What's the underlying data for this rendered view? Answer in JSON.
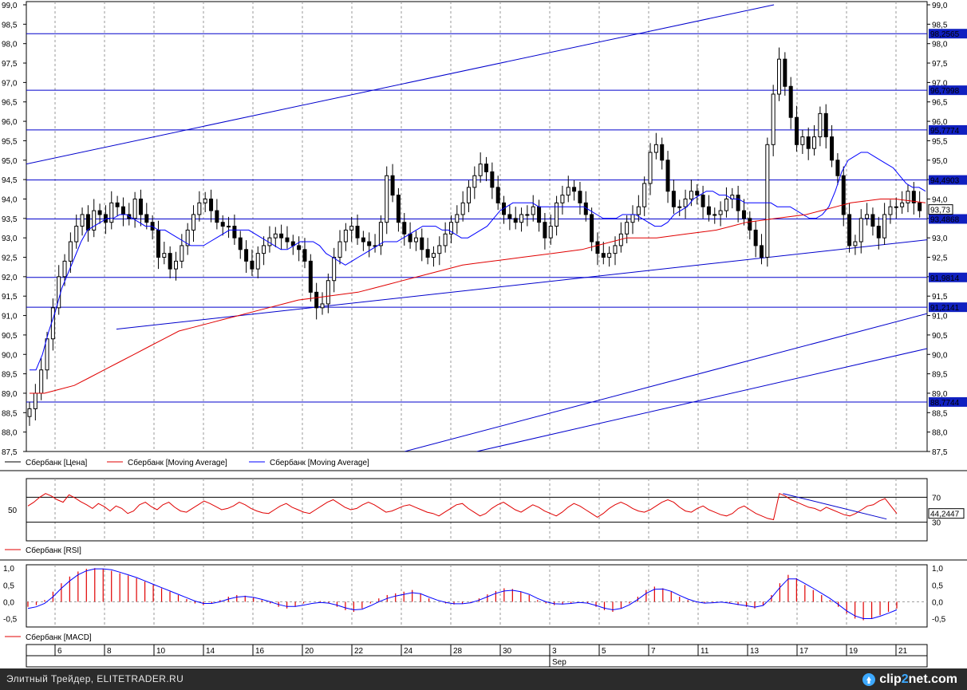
{
  "footer": {
    "site_text": "Элитный Трейдер, ELITETRADER.RU",
    "brand_pre": "clip",
    "brand_mid": "2",
    "brand_post": "net.com",
    "brand_icon": "clip-icon"
  },
  "colors": {
    "price": "#000000",
    "ma_fast": "#0000ff",
    "ma_slow": "#e00000",
    "level": "#0000cc",
    "rsi": "#e00000",
    "macd_hist": "#e00000",
    "macd_signal": "#0000ff"
  },
  "chart_data": [
    {
      "type": "candlestick",
      "panel": "price",
      "ylim": [
        87.5,
        99.0
      ],
      "y_ticks": [
        "87,5",
        "88,0",
        "88,5",
        "89,0",
        "89,5",
        "90,0",
        "90,5",
        "91,0",
        "91,5",
        "92,0",
        "92,5",
        "93,0",
        "93,5",
        "94,0",
        "94,5",
        "95,0",
        "95,5",
        "96,0",
        "96,5",
        "97,0",
        "97,5",
        "98,0",
        "98,5",
        "99,0"
      ],
      "legend": [
        "Сбербанк [Цена]",
        "Сбербанк [Moving Average]",
        "Сбербанк [Moving Average]"
      ],
      "horizontal_levels": [
        {
          "value": 98.2565,
          "label": "98,2565"
        },
        {
          "value": 96.7998,
          "label": "96,7998"
        },
        {
          "value": 95.7774,
          "label": "95,7774"
        },
        {
          "value": 94.4903,
          "label": "94,4903"
        },
        {
          "value": 93.4868,
          "label": "93,4868"
        },
        {
          "value": 91.9814,
          "label": "91,9814"
        },
        {
          "value": 91.2141,
          "label": "91,2141"
        },
        {
          "value": 88.7744,
          "label": "88,7744"
        }
      ],
      "last_price": {
        "value": 93.73,
        "label": "93,73"
      },
      "trend_lines": [
        {
          "from": [
            0.0,
            94.9
          ],
          "to": [
            0.83,
            99.0
          ]
        },
        {
          "from": [
            0.1,
            90.65
          ],
          "to": [
            1.0,
            92.95
          ]
        },
        {
          "from": [
            0.42,
            87.5
          ],
          "to": [
            1.0,
            91.05
          ]
        },
        {
          "from": [
            0.5,
            87.5
          ],
          "to": [
            1.0,
            90.15
          ]
        }
      ],
      "series": [
        {
          "name": "Сбербанк [Цена]",
          "close": [
            88.6,
            89.0,
            89.6,
            90.4,
            91.2,
            92.0,
            92.4,
            92.9,
            93.3,
            93.6,
            93.2,
            93.7,
            93.6,
            93.4,
            93.9,
            93.8,
            93.6,
            93.5,
            94.0,
            93.6,
            93.4,
            93.2,
            92.5,
            92.6,
            92.2,
            92.4,
            92.8,
            93.2,
            93.6,
            93.9,
            94.0,
            93.7,
            93.4,
            93.3,
            93.3,
            93.0,
            92.7,
            92.4,
            92.2,
            92.6,
            92.8,
            93.0,
            93.1,
            93.0,
            92.9,
            92.8,
            92.7,
            92.4,
            91.6,
            91.2,
            91.3,
            91.9,
            92.5,
            92.9,
            93.2,
            93.3,
            93.0,
            92.9,
            92.8,
            92.8,
            93.4,
            94.6,
            94.1,
            93.4,
            93.1,
            92.9,
            93.0,
            92.7,
            92.5,
            92.6,
            92.8,
            93.1,
            93.4,
            93.6,
            93.9,
            94.3,
            94.6,
            94.9,
            94.7,
            94.3,
            93.9,
            93.6,
            93.5,
            93.4,
            93.6,
            93.6,
            93.8,
            93.4,
            93.0,
            93.3,
            93.9,
            94.1,
            94.3,
            94.2,
            93.9,
            93.6,
            92.9,
            92.6,
            92.5,
            92.6,
            92.8,
            93.1,
            93.4,
            93.6,
            93.8,
            94.4,
            95.2,
            95.4,
            95.0,
            94.2,
            93.8,
            93.8,
            94.0,
            94.2,
            94.1,
            93.8,
            93.6,
            93.6,
            93.7,
            94.0,
            94.1,
            93.7,
            93.5,
            93.2,
            92.8,
            92.5,
            95.4,
            96.7,
            97.6,
            96.9,
            96.1,
            95.4,
            95.6,
            95.3,
            95.6,
            96.2,
            95.6,
            95.0,
            94.6,
            93.6,
            92.8,
            92.9,
            93.5,
            93.6,
            93.3,
            93.0,
            93.6,
            93.8,
            93.8,
            93.9,
            94.2,
            93.9,
            93.7
          ]
        },
        {
          "name": "Сбербанк [Moving Average] fast",
          "values": [
            89.6,
            89.6,
            90.0,
            90.6,
            91.1,
            91.7,
            92.1,
            92.5,
            92.9,
            93.2,
            93.3,
            93.4,
            93.5,
            93.5,
            93.6,
            93.6,
            93.5,
            93.4,
            93.3,
            93.3,
            93.2,
            93.2,
            93.1,
            93.0,
            92.9,
            92.8,
            92.8,
            92.8,
            92.9,
            93.0,
            93.1,
            93.2,
            93.2,
            93.2,
            93.2,
            93.1,
            93.0,
            92.9,
            92.8,
            92.7,
            92.7,
            92.8,
            92.9,
            92.9,
            92.9,
            92.8,
            92.6,
            92.5,
            92.4,
            92.3,
            92.4,
            92.5,
            92.6,
            92.7,
            92.8,
            92.9,
            92.9,
            92.9,
            93.0,
            93.1,
            93.2,
            93.3,
            93.3,
            93.3,
            93.2,
            93.2,
            93.1,
            93.0,
            93.0,
            93.1,
            93.2,
            93.3,
            93.5,
            93.7,
            93.8,
            93.9,
            93.9,
            93.9,
            93.9,
            93.8,
            93.8,
            93.8,
            93.8,
            93.8,
            93.8,
            93.8,
            93.8,
            93.7,
            93.6,
            93.5,
            93.5,
            93.5,
            93.6,
            93.6,
            93.6,
            93.5,
            93.4,
            93.3,
            93.3,
            93.4,
            93.6,
            93.7,
            93.8,
            94.0,
            94.1,
            94.2,
            94.2,
            94.1,
            94.1,
            94.0,
            94.0,
            93.9,
            93.9,
            93.9,
            93.9,
            93.9,
            93.8,
            93.8,
            93.8,
            93.7,
            93.6,
            93.5,
            93.5,
            93.6,
            93.8,
            94.2,
            94.7,
            95.0,
            95.1,
            95.2,
            95.2,
            95.1,
            95.0,
            94.9,
            94.8,
            94.6,
            94.4,
            94.3,
            94.3,
            94.2
          ]
        },
        {
          "name": "Сбербанк [Moving Average] slow",
          "values": [
            89.0,
            89.0,
            89.1,
            89.2,
            89.4,
            89.6,
            89.8,
            90.0,
            90.2,
            90.4,
            90.6,
            90.7,
            90.8,
            90.9,
            91.0,
            91.1,
            91.2,
            91.3,
            91.4,
            91.45,
            91.5,
            91.55,
            91.6,
            91.7,
            91.8,
            91.9,
            92.0,
            92.1,
            92.2,
            92.3,
            92.35,
            92.4,
            92.45,
            92.5,
            92.55,
            92.6,
            92.65,
            92.7,
            92.8,
            92.9,
            93.0,
            93.0,
            93.0,
            93.05,
            93.1,
            93.15,
            93.2,
            93.3,
            93.4,
            93.45,
            93.5,
            93.55,
            93.6,
            93.7,
            93.8,
            93.9,
            93.95,
            94.0,
            94.0,
            93.95,
            93.9
          ]
        }
      ]
    },
    {
      "type": "line",
      "panel": "rsi",
      "legend": "Сбербанк [RSI]",
      "levels": [
        70,
        30
      ],
      "left_ticks": [
        "50"
      ],
      "right_ticks": [
        "70",
        "30"
      ],
      "value_label": "44,2447",
      "values": [
        56,
        62,
        70,
        76,
        72,
        66,
        62,
        74,
        69,
        63,
        58,
        52,
        60,
        55,
        48,
        56,
        52,
        44,
        48,
        58,
        62,
        55,
        50,
        58,
        62,
        54,
        48,
        46,
        52,
        58,
        64,
        60,
        55,
        50,
        52,
        56,
        62,
        58,
        52,
        48,
        45,
        44,
        50,
        56,
        60,
        54,
        50,
        46,
        44,
        50,
        56,
        62,
        66,
        60,
        54,
        50,
        52,
        58,
        62,
        58,
        52,
        46,
        48,
        52,
        56,
        58,
        54,
        50,
        46,
        44,
        40,
        46,
        52,
        58,
        60,
        52,
        46,
        40,
        44,
        52,
        58,
        62,
        56,
        50,
        46,
        52,
        58,
        54,
        48,
        44,
        40,
        46,
        54,
        60,
        56,
        50,
        44,
        38,
        44,
        52,
        58,
        62,
        58,
        52,
        48,
        46,
        50,
        56,
        62,
        66,
        62,
        54,
        48,
        46,
        52,
        56,
        50,
        46,
        42,
        40,
        44,
        52,
        56,
        50,
        44,
        40,
        36,
        34,
        76,
        72,
        66,
        62,
        58,
        54,
        52,
        48,
        54,
        50,
        46,
        42,
        40,
        44,
        50,
        56,
        58,
        64,
        68,
        56,
        44
      ],
      "trend_line": {
        "from": [
          0.84,
          76
        ],
        "to": [
          0.955,
          35
        ]
      }
    },
    {
      "type": "bar",
      "panel": "macd",
      "legend": "Сбербанк [MACD]",
      "right_ticks": [
        "1,0",
        "0,5",
        "0,0",
        "-0,5"
      ],
      "left_ticks": [
        "1,0",
        "0,5",
        "0,0",
        "-0,5"
      ],
      "ylim": [
        -0.75,
        1.1
      ],
      "histogram": [
        -0.15,
        -0.1,
        0.05,
        0.3,
        0.55,
        0.75,
        0.9,
        0.98,
        1.0,
        0.98,
        0.92,
        0.85,
        0.78,
        0.7,
        0.6,
        0.5,
        0.4,
        0.3,
        0.2,
        0.08,
        -0.05,
        -0.1,
        -0.05,
        0.05,
        0.15,
        0.2,
        0.18,
        0.12,
        0.05,
        -0.05,
        -0.15,
        -0.2,
        -0.15,
        -0.05,
        0.0,
        0.02,
        -0.05,
        -0.15,
        -0.25,
        -0.3,
        -0.2,
        -0.05,
        0.1,
        0.2,
        0.25,
        0.3,
        0.35,
        0.25,
        0.1,
        0.0,
        -0.05,
        -0.08,
        -0.06,
        -0.02,
        0.1,
        0.22,
        0.32,
        0.4,
        0.38,
        0.3,
        0.2,
        0.05,
        -0.05,
        -0.1,
        -0.08,
        -0.05,
        0.0,
        -0.05,
        -0.15,
        -0.25,
        -0.3,
        -0.2,
        -0.05,
        0.15,
        0.35,
        0.45,
        0.4,
        0.3,
        0.15,
        0.05,
        -0.02,
        -0.05,
        -0.02,
        0.0,
        -0.05,
        -0.1,
        -0.15,
        -0.2,
        -0.1,
        0.2,
        0.55,
        0.8,
        0.7,
        0.5,
        0.35,
        0.2,
        0.05,
        -0.15,
        -0.35,
        -0.5,
        -0.55,
        -0.5,
        -0.4,
        -0.3,
        -0.2
      ],
      "signal": [
        -0.2,
        -0.15,
        -0.05,
        0.15,
        0.4,
        0.62,
        0.8,
        0.92,
        0.98,
        0.98,
        0.95,
        0.88,
        0.8,
        0.72,
        0.62,
        0.52,
        0.42,
        0.32,
        0.22,
        0.12,
        0.02,
        -0.05,
        -0.05,
        0.0,
        0.08,
        0.14,
        0.16,
        0.13,
        0.07,
        0.0,
        -0.08,
        -0.14,
        -0.14,
        -0.1,
        -0.05,
        -0.02,
        -0.04,
        -0.1,
        -0.18,
        -0.24,
        -0.22,
        -0.12,
        0.0,
        0.1,
        0.17,
        0.22,
        0.27,
        0.24,
        0.14,
        0.05,
        -0.02,
        -0.06,
        -0.06,
        -0.03,
        0.05,
        0.15,
        0.25,
        0.32,
        0.34,
        0.3,
        0.22,
        0.1,
        0.0,
        -0.06,
        -0.07,
        -0.05,
        -0.02,
        -0.04,
        -0.11,
        -0.19,
        -0.24,
        -0.2,
        -0.09,
        0.07,
        0.25,
        0.37,
        0.38,
        0.31,
        0.19,
        0.08,
        0.0,
        -0.04,
        -0.03,
        -0.01,
        -0.04,
        -0.08,
        -0.12,
        -0.16,
        -0.11,
        0.12,
        0.42,
        0.68,
        0.68,
        0.54,
        0.4,
        0.25,
        0.1,
        -0.08,
        -0.27,
        -0.42,
        -0.5,
        -0.5,
        -0.43,
        -0.34,
        -0.24
      ]
    }
  ],
  "x_axis": {
    "labels": [
      "6",
      "8",
      "10",
      "14",
      "16",
      "20",
      "22",
      "24",
      "28",
      "30",
      "3",
      "5",
      "7",
      "11",
      "13",
      "17",
      "19",
      "21"
    ],
    "month": "Sep"
  }
}
